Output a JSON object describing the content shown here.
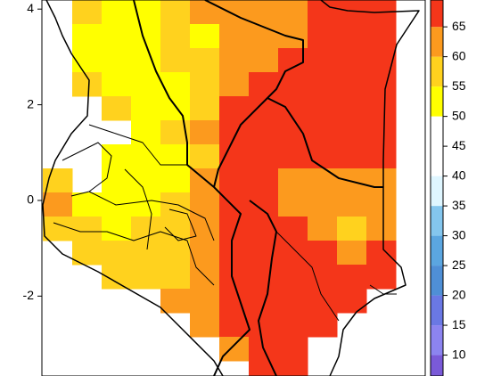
{
  "map": {
    "lat_ticks": [
      4,
      2,
      0,
      -2
    ],
    "lat_lim": [
      -3.67,
      4.19
    ],
    "grid": [
      [
        null,
        57,
        52,
        52,
        57,
        62,
        62,
        62,
        62,
        67,
        67,
        67,
        null
      ],
      [
        null,
        52,
        52,
        52,
        57,
        52,
        62,
        62,
        62,
        67,
        67,
        67,
        null
      ],
      [
        null,
        52,
        52,
        52,
        57,
        57,
        62,
        62,
        67,
        67,
        67,
        67,
        null
      ],
      [
        null,
        57,
        52,
        52,
        52,
        57,
        62,
        67,
        67,
        67,
        67,
        67,
        null
      ],
      [
        null,
        null,
        57,
        52,
        52,
        57,
        67,
        67,
        67,
        67,
        67,
        72,
        null
      ],
      [
        null,
        null,
        null,
        52,
        57,
        62,
        67,
        67,
        67,
        67,
        67,
        67,
        null
      ],
      [
        null,
        null,
        52,
        52,
        52,
        57,
        67,
        67,
        67,
        67,
        67,
        67,
        null
      ],
      [
        57,
        null,
        52,
        52,
        52,
        62,
        67,
        67,
        62,
        62,
        62,
        62,
        null
      ],
      [
        62,
        52,
        52,
        52,
        57,
        62,
        67,
        67,
        62,
        62,
        62,
        62,
        null
      ],
      [
        57,
        57,
        52,
        57,
        57,
        62,
        67,
        67,
        67,
        62,
        57,
        62,
        null
      ],
      [
        null,
        57,
        57,
        57,
        57,
        62,
        67,
        72,
        67,
        67,
        62,
        67,
        null
      ],
      [
        null,
        null,
        57,
        57,
        57,
        62,
        67,
        67,
        67,
        67,
        67,
        67,
        null
      ],
      [
        null,
        null,
        null,
        null,
        62,
        62,
        67,
        67,
        67,
        72,
        67,
        null,
        null
      ],
      [
        null,
        null,
        null,
        null,
        null,
        62,
        67,
        67,
        67,
        67,
        null,
        null,
        null
      ],
      [
        null,
        null,
        null,
        null,
        null,
        null,
        62,
        67,
        67,
        null,
        null,
        null,
        null
      ],
      [
        null,
        null,
        null,
        null,
        null,
        null,
        null,
        67,
        67,
        null,
        null,
        null,
        null
      ]
    ],
    "colorbar": {
      "lim": [
        6.5,
        69.5
      ],
      "bounds": [
        5,
        10,
        15,
        20,
        25,
        30,
        35,
        40,
        45,
        50,
        55,
        60,
        65,
        70
      ],
      "colors": [
        "#7a5ad8",
        "#8c84f0",
        "#6a78e4",
        "#4f8fd6",
        "#5ba6e0",
        "#84c6ee",
        "#dff6ff",
        "#ffffff",
        "#ffffff",
        "#ffff00",
        "#ffd21e",
        "#fc9a1e",
        "#f4361a"
      ],
      "ticks": [
        65,
        60,
        55,
        50,
        45,
        40,
        35,
        30,
        25,
        20,
        15,
        10
      ]
    }
  }
}
